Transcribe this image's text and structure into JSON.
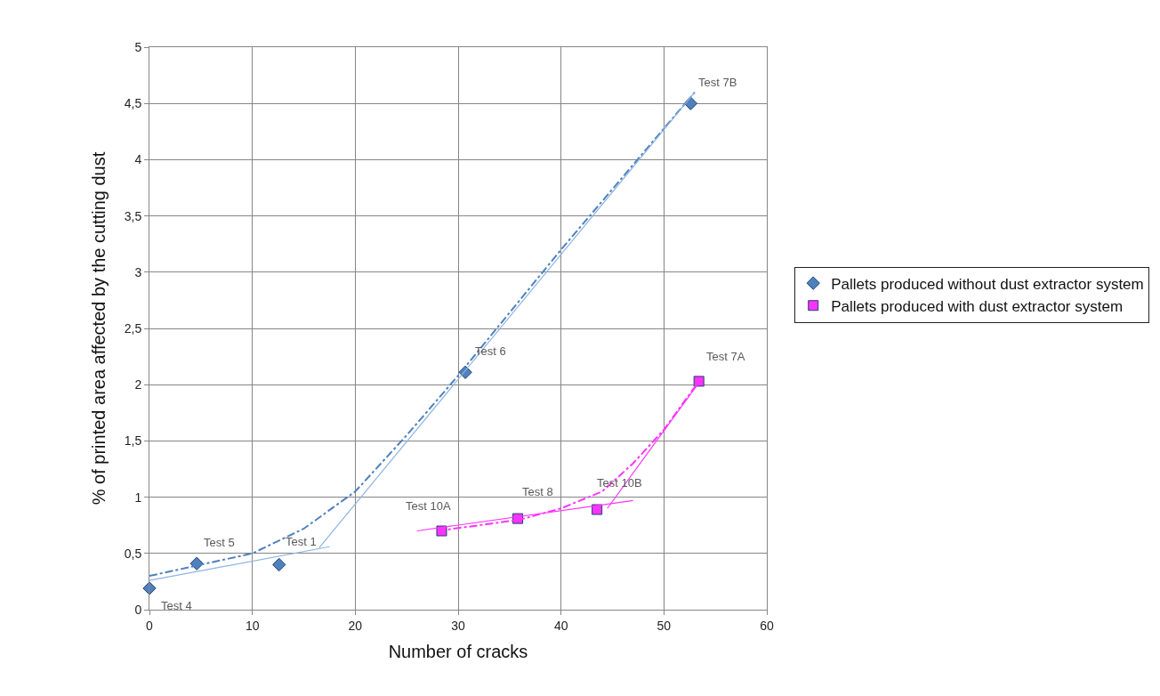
{
  "chart_data": {
    "type": "scatter",
    "xlabel": "Number of cracks",
    "ylabel": "% of printed area affected by the cutting dust",
    "xlim": [
      0,
      60
    ],
    "xticks": [
      0,
      10,
      20,
      30,
      40,
      50,
      60
    ],
    "ylim": [
      0,
      5
    ],
    "yticks": [
      0,
      {
        "value": 0.5,
        "label": "0,5"
      },
      1,
      {
        "value": 1.5,
        "label": "1,5"
      },
      2,
      {
        "value": 2.5,
        "label": "2,5"
      },
      3,
      {
        "value": 3.5,
        "label": "3,5"
      },
      4,
      {
        "value": 4.5,
        "label": "4,5"
      },
      5
    ],
    "grid": true,
    "legend": "right",
    "series": [
      {
        "name": "Pallets produced without dust extractor system",
        "color": "#4f81bd",
        "marker": "diamond",
        "x": [
          0,
          4.6,
          12.6,
          30.7,
          52.6
        ],
        "values": [
          0.19,
          0.41,
          0.4,
          2.11,
          4.5
        ]
      },
      {
        "name": "Pallets produced with dust extractor system",
        "color": "#ff33ff",
        "marker": "square",
        "x": [
          28.4,
          35.8,
          43.5,
          53.4
        ],
        "values": [
          0.7,
          0.81,
          0.89,
          2.03
        ]
      },
      {
        "type": "line",
        "color": "#4f81bd",
        "line_style": "dashed",
        "x": [
          0,
          10,
          15,
          20,
          25,
          30,
          40,
          53
        ],
        "values": [
          0.3,
          0.5,
          0.72,
          1.05,
          1.55,
          2.08,
          3.2,
          4.6
        ]
      },
      {
        "type": "line",
        "color": "#8db3e2",
        "line_style": "solid",
        "x": [
          0,
          17.5
        ],
        "values": [
          0.26,
          0.56
        ]
      },
      {
        "type": "line",
        "color": "#8db3e2",
        "line_style": "solid",
        "x": [
          16.5,
          53
        ],
        "values": [
          0.55,
          4.6
        ]
      },
      {
        "type": "line",
        "color": "#ff33ff",
        "line_style": "dashed",
        "x": [
          28,
          36,
          40,
          44,
          47,
          50,
          53.4
        ],
        "values": [
          0.7,
          0.8,
          0.9,
          1.05,
          1.3,
          1.6,
          2.03
        ]
      },
      {
        "type": "line",
        "color": "#ff33ff",
        "line_style": "solid",
        "x": [
          26,
          47
        ],
        "values": [
          0.7,
          0.97
        ]
      },
      {
        "type": "line",
        "color": "#ff33ff",
        "line_style": "solid",
        "x": [
          44.5,
          53.5
        ],
        "values": [
          0.9,
          2.03
        ]
      }
    ],
    "annotations": [
      {
        "text": "Test 4",
        "x": 0,
        "y": 0.19
      },
      {
        "text": "Test 5",
        "x": 4.6,
        "y": 0.41
      },
      {
        "text": "Test 1",
        "x": 12.6,
        "y": 0.4
      },
      {
        "text": "Test 6",
        "x": 30.7,
        "y": 2.11
      },
      {
        "text": "Test 7B",
        "x": 52.6,
        "y": 4.5
      },
      {
        "text": "Test 10A",
        "x": 28.4,
        "y": 0.7
      },
      {
        "text": "Test 8",
        "x": 35.8,
        "y": 0.81
      },
      {
        "text": "Test 10B",
        "x": 43.5,
        "y": 0.89
      },
      {
        "text": "Test 7A",
        "x": 53.4,
        "y": 2.03
      }
    ]
  }
}
